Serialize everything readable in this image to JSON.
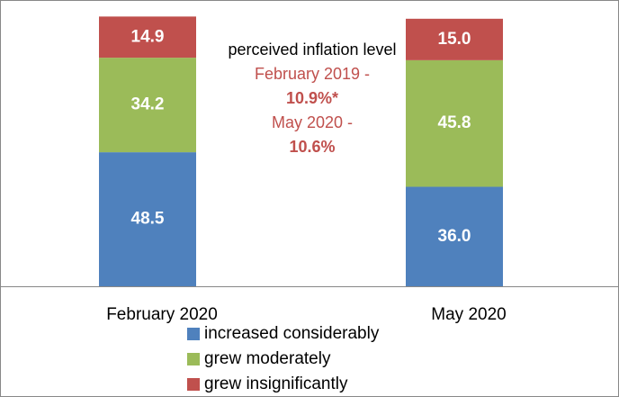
{
  "chart_data": {
    "type": "stacked_bar",
    "categories": [
      "February 2020",
      "May 2020"
    ],
    "series": [
      {
        "name": "increased considerably",
        "color": "#4f81bd",
        "values": [
          48.5,
          36
        ],
        "value_labels": [
          "48.5",
          "36.0"
        ]
      },
      {
        "name": "grew moderately",
        "color": "#9bbb59",
        "values": [
          34.2,
          45.8
        ],
        "value_labels": [
          "34.2",
          "45.8"
        ]
      },
      {
        "name": "grew insignificantly",
        "color": "#c0504d",
        "values": [
          14.9,
          15
        ],
        "value_labels": [
          "14.9",
          "15.0"
        ]
      }
    ],
    "annotation": {
      "title": "perceived inflation level",
      "lines": [
        "February 2019 -",
        "10.9%*",
        "May 2020 -",
        "10.6%"
      ]
    }
  }
}
